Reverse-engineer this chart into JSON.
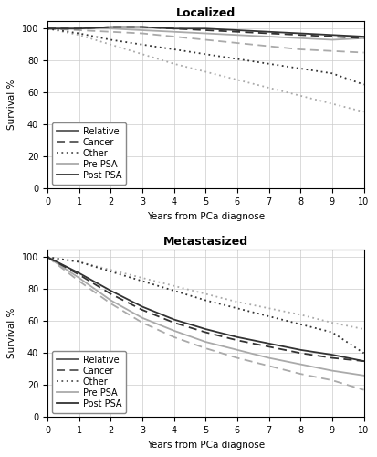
{
  "title_top": "Localized",
  "title_bottom": "Metastasized",
  "xlabel": "Years from PCa diagnose",
  "ylabel": "Survival %",
  "xlim": [
    0,
    10
  ],
  "ylim": [
    0,
    105
  ],
  "yticks": [
    0,
    20,
    40,
    60,
    80,
    100
  ],
  "xticks": [
    0,
    1,
    2,
    3,
    4,
    5,
    6,
    7,
    8,
    9,
    10
  ],
  "color_pre": "#aaaaaa",
  "color_post": "#333333",
  "localized": {
    "post_relative": [
      100,
      100,
      101,
      101,
      100,
      100,
      99,
      98,
      97,
      96,
      95
    ],
    "post_cancer": [
      100,
      100,
      101,
      101,
      100,
      99,
      98,
      97,
      96,
      95,
      94
    ],
    "post_other": [
      100,
      97,
      93,
      90,
      87,
      84,
      81,
      78,
      75,
      72,
      65
    ],
    "pre_relative": [
      100,
      100,
      100,
      99,
      98,
      97,
      96,
      95,
      94,
      93,
      94
    ],
    "pre_cancer": [
      100,
      99,
      98,
      97,
      95,
      93,
      91,
      89,
      87,
      86,
      85
    ],
    "pre_other": [
      100,
      96,
      90,
      84,
      78,
      73,
      68,
      63,
      58,
      53,
      48
    ]
  },
  "metastasized": {
    "post_relative": [
      100,
      90,
      79,
      69,
      61,
      55,
      50,
      46,
      42,
      39,
      35
    ],
    "post_cancer": [
      100,
      89,
      77,
      67,
      59,
      53,
      48,
      44,
      40,
      37,
      35
    ],
    "post_other": [
      100,
      97,
      91,
      85,
      79,
      73,
      68,
      63,
      58,
      53,
      40
    ],
    "pre_relative": [
      100,
      87,
      73,
      62,
      54,
      47,
      42,
      37,
      33,
      29,
      26
    ],
    "pre_cancer": [
      100,
      85,
      71,
      59,
      50,
      43,
      37,
      32,
      27,
      23,
      17
    ],
    "pre_other": [
      100,
      97,
      92,
      87,
      82,
      77,
      72,
      68,
      64,
      59,
      55
    ]
  }
}
